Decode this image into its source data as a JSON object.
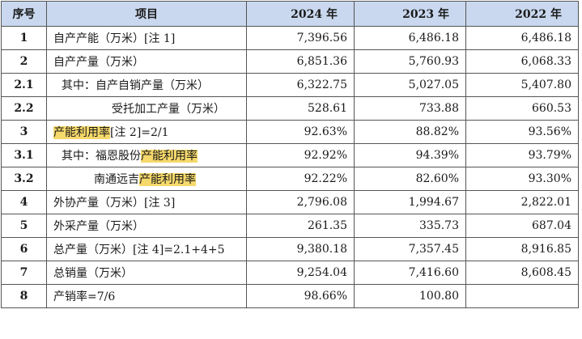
{
  "table": {
    "headers": [
      "序号",
      "项目",
      "2024 年",
      "2023 年",
      "2022 年"
    ],
    "rows": [
      {
        "seq": "1",
        "pre": "自产产能（万米）[注 1]",
        "hl": "",
        "post": "",
        "indent": 0,
        "v2024": "7,396.56",
        "v2023": "6,486.18",
        "v2022": "6,486.18"
      },
      {
        "seq": "2",
        "pre": "自产产量（万米）",
        "hl": "",
        "post": "",
        "indent": 0,
        "v2024": "6,851.36",
        "v2023": "5,760.93",
        "v2022": "6,068.33"
      },
      {
        "seq": "2.1",
        "pre": "其中：自产自销产量（万米）",
        "hl": "",
        "post": "",
        "indent": 1,
        "v2024": "6,322.75",
        "v2023": "5,027.05",
        "v2022": "5,407.80"
      },
      {
        "seq": "2.2",
        "pre": "受托加工产量（万米）",
        "hl": "",
        "post": "",
        "indent": 3,
        "v2024": "528.61",
        "v2023": "733.88",
        "v2022": "660.53"
      },
      {
        "seq": "3",
        "pre": "",
        "hl": "产能利用率",
        "post": "[注 2]=2/1",
        "indent": 0,
        "v2024": "92.63%",
        "v2023": "88.82%",
        "v2022": "93.56%"
      },
      {
        "seq": "3.1",
        "pre": "其中：福恩股份",
        "hl": "产能利用率",
        "post": "",
        "indent": 1,
        "v2024": "92.92%",
        "v2023": "94.39%",
        "v2022": "93.79%"
      },
      {
        "seq": "3.2",
        "pre": "南通远吉",
        "hl": "产能利用率",
        "post": "",
        "indent": 2,
        "v2024": "92.22%",
        "v2023": "82.60%",
        "v2022": "93.30%"
      },
      {
        "seq": "4",
        "pre": "外协产量（万米）[注 3]",
        "hl": "",
        "post": "",
        "indent": 0,
        "v2024": "2,796.08",
        "v2023": "1,994.67",
        "v2022": "2,822.01"
      },
      {
        "seq": "5",
        "pre": "外采产量（万米）",
        "hl": "",
        "post": "",
        "indent": 0,
        "v2024": "261.35",
        "v2023": "335.73",
        "v2022": "687.04"
      },
      {
        "seq": "6",
        "pre": "总产量（万米）[注 4]=2.1+4+5",
        "hl": "",
        "post": "",
        "indent": 0,
        "v2024": "9,380.18",
        "v2023": "7,357.45",
        "v2022": "8,916.85"
      },
      {
        "seq": "7",
        "pre": "总销量（万米）",
        "hl": "",
        "post": "",
        "indent": 0,
        "v2024": "9,254.04",
        "v2023": "7,416.60",
        "v2022": "8,608.45"
      },
      {
        "seq": "8",
        "pre": "产销率=7/6",
        "hl": "",
        "post": "",
        "indent": 0,
        "v2024": "98.66%",
        "v2023": "100.80",
        "v2022": ""
      }
    ]
  },
  "colors": {
    "header_bg": "#c9d8ee",
    "highlight": "#f6d96b",
    "border": "#555555"
  }
}
